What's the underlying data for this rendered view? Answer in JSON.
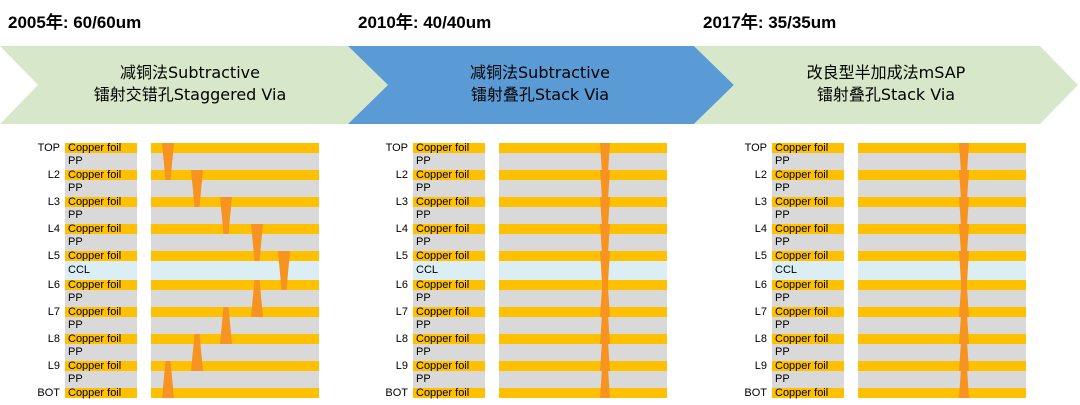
{
  "years": [
    {
      "label": "2005年: 60/60um"
    },
    {
      "label": "2010年: 40/40um"
    },
    {
      "label": "2017年: 35/35um"
    }
  ],
  "stages": [
    {
      "line1": "减铜法Subtractive",
      "line2": "镭射交错孔Staggered Via",
      "color": "#d6e8c9",
      "via_style": "staggered"
    },
    {
      "line1": "减铜法Subtractive",
      "line2": "镭射叠孔Stack Via",
      "color": "#5b9bd5",
      "via_style": "stacked"
    },
    {
      "line1": "改良型半加成法mSAP",
      "line2": "镭射叠孔Stack Via",
      "color": "#d6e8c9",
      "via_style": "stacked"
    }
  ],
  "stackup": {
    "layer_labels": [
      "TOP",
      "L2",
      "L3",
      "L4",
      "L5",
      "L6",
      "L7",
      "L8",
      "L9",
      "BOT"
    ],
    "copper_label": "Copper foil",
    "pp_label": "PP",
    "ccl_label": "CCL"
  },
  "colors": {
    "copper": "#ffc000",
    "pp": "#d9d9d9",
    "ccl": "#daeef3",
    "via": "#f79320"
  }
}
